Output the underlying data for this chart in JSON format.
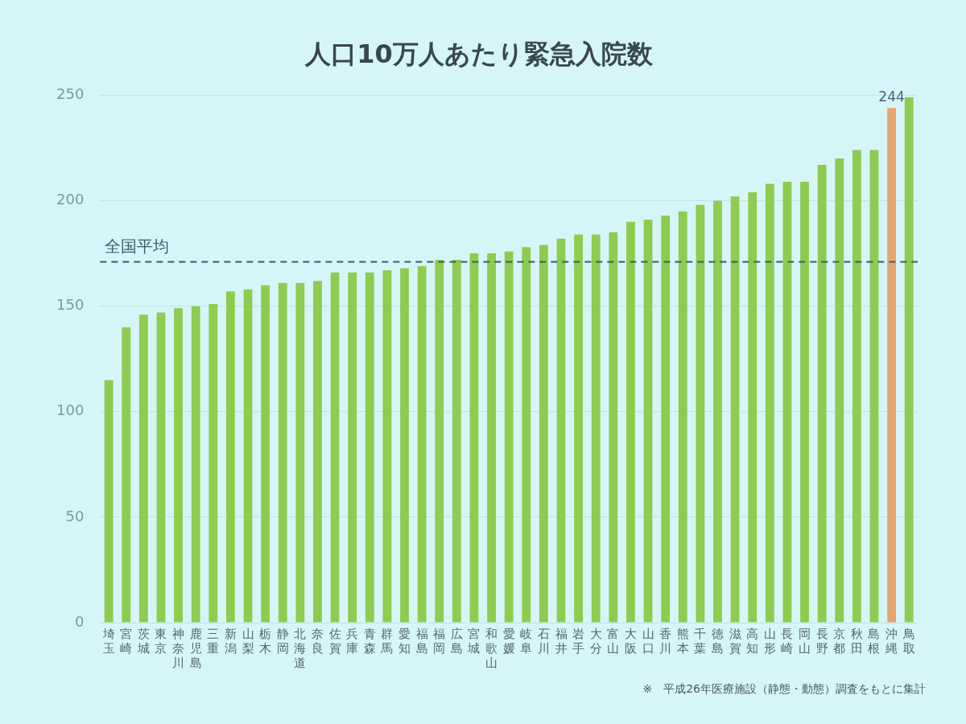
{
  "chart_data": {
    "type": "bar",
    "title": "人口10万人あたり緊急入院数",
    "categories": [
      "埼玉",
      "宮崎",
      "茨城",
      "東京",
      "神奈川",
      "鹿児島",
      "三重",
      "新潟",
      "山梨",
      "栃木",
      "静岡",
      "北海道",
      "奈良",
      "佐賀",
      "兵庫",
      "青森",
      "群馬",
      "愛知",
      "福島",
      "福岡",
      "広島",
      "宮城",
      "和歌山",
      "愛媛",
      "岐阜",
      "石川",
      "福井",
      "岩手",
      "大分",
      "富山",
      "大阪",
      "山口",
      "香川",
      "熊本",
      "千葉",
      "徳島",
      "滋賀",
      "高知",
      "山形",
      "長崎",
      "岡山",
      "長野",
      "京都",
      "秋田",
      "島根",
      "沖縄",
      "鳥取"
    ],
    "values": [
      115,
      140,
      146,
      147,
      149,
      150,
      151,
      157,
      158,
      160,
      161,
      161,
      162,
      166,
      166,
      166,
      167,
      168,
      169,
      172,
      172,
      175,
      175,
      176,
      178,
      179,
      182,
      184,
      184,
      185,
      190,
      191,
      193,
      195,
      198,
      200,
      202,
      204,
      208,
      209,
      209,
      217,
      220,
      224,
      224,
      244,
      249
    ],
    "colors": [
      "#8dcc4e",
      "#8dcc4e",
      "#8dcc4e",
      "#8dcc4e",
      "#8dcc4e",
      "#8dcc4e",
      "#8dcc4e",
      "#8dcc4e",
      "#8dcc4e",
      "#8dcc4e",
      "#8dcc4e",
      "#8dcc4e",
      "#8dcc4e",
      "#8dcc4e",
      "#8dcc4e",
      "#8dcc4e",
      "#8dcc4e",
      "#8dcc4e",
      "#8dcc4e",
      "#8dcc4e",
      "#8dcc4e",
      "#8dcc4e",
      "#8dcc4e",
      "#8dcc4e",
      "#8dcc4e",
      "#8dcc4e",
      "#8dcc4e",
      "#8dcc4e",
      "#8dcc4e",
      "#8dcc4e",
      "#8dcc4e",
      "#8dcc4e",
      "#8dcc4e",
      "#8dcc4e",
      "#8dcc4e",
      "#8dcc4e",
      "#8dcc4e",
      "#8dcc4e",
      "#8dcc4e",
      "#8dcc4e",
      "#8dcc4e",
      "#8dcc4e",
      "#8dcc4e",
      "#8dcc4e",
      "#8dcc4e",
      "#e8a46e",
      "#8dcc4e"
    ],
    "value_labels": [
      null,
      null,
      null,
      null,
      null,
      null,
      null,
      null,
      null,
      null,
      null,
      null,
      null,
      null,
      null,
      null,
      null,
      null,
      null,
      null,
      null,
      null,
      null,
      null,
      null,
      null,
      null,
      null,
      null,
      null,
      null,
      null,
      null,
      null,
      null,
      null,
      null,
      null,
      null,
      null,
      null,
      null,
      null,
      null,
      null,
      "244",
      null
    ],
    "ylim": [
      0,
      250
    ],
    "yticks": [
      0,
      50,
      100,
      150,
      200,
      250
    ],
    "grid": "y",
    "ref_lines": [
      {
        "axis": "y",
        "value": 171,
        "label": "全国平均",
        "line_style": "dashed",
        "color": "#3d5a6c"
      }
    ],
    "annotations": [
      "※　平成26年医療施設（静態・動態）調査をもとに集計"
    ]
  }
}
